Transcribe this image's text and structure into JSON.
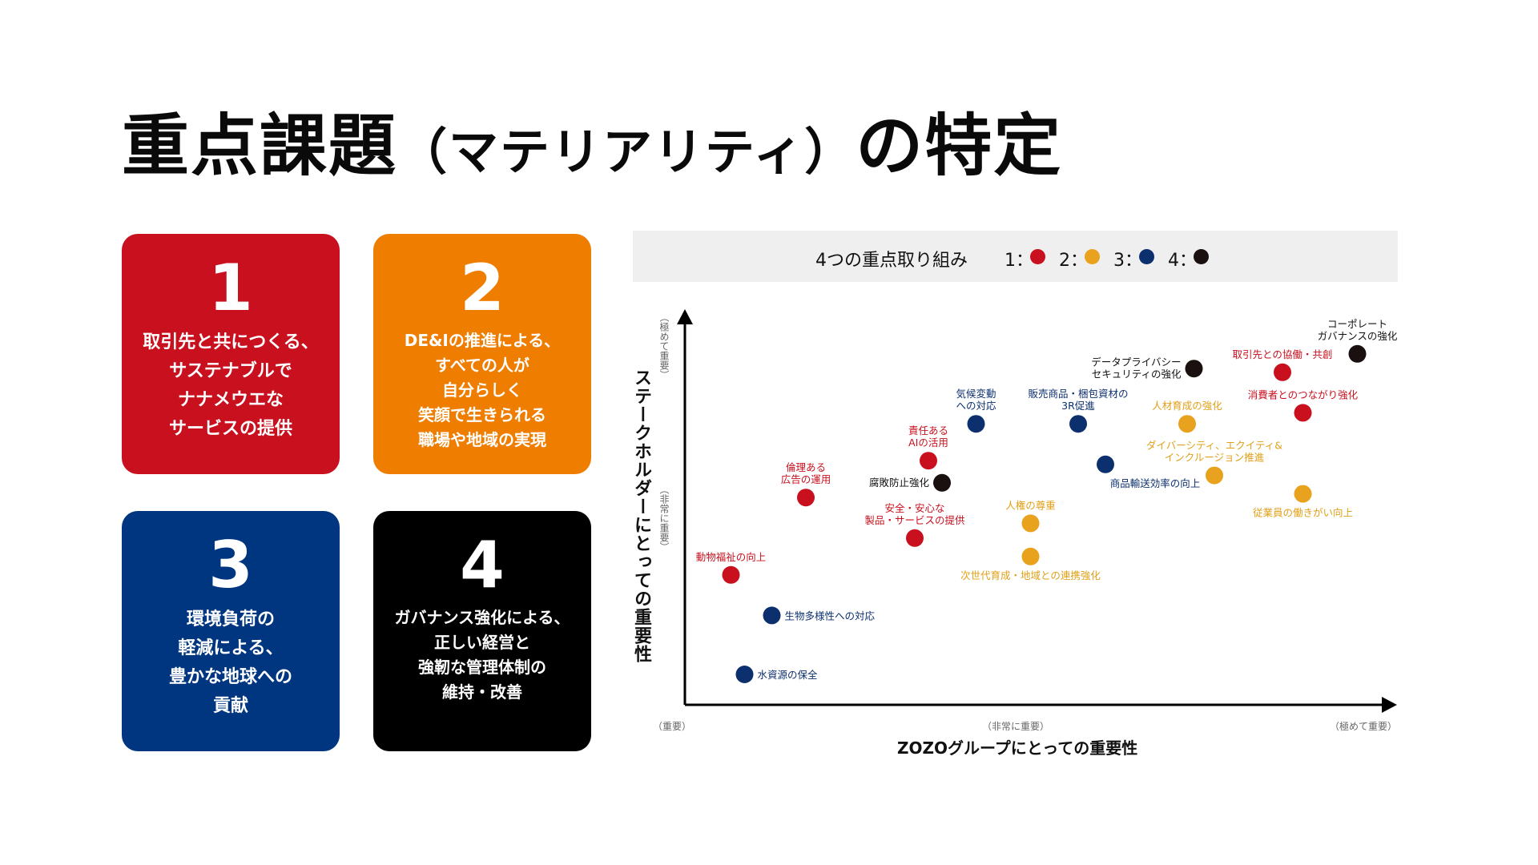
{
  "title": {
    "main": "重点課題",
    "paren": "（マテリアリティ）",
    "suffix": "の特定"
  },
  "cards": [
    {
      "number": "1",
      "text": "取引先と共につくる、\nサステナブルで\nナナメウエな\nサービスの提供",
      "color": "#c8101e"
    },
    {
      "number": "2",
      "text": "DE&Iの推進による、\nすべての人が\n自分らしく\n笑顔で生きられる\n職場や地域の実現",
      "color": "#ef7d00"
    },
    {
      "number": "3",
      "text": "環境負荷の\n軽減による、\n豊かな地球への\n貢献",
      "color": "#003580"
    },
    {
      "number": "4",
      "text": "ガバナンス強化による、\n正しい経営と\n強靭な管理体制の\n維持・改善",
      "color": "#000000"
    }
  ],
  "legend": {
    "title": "4つの重点取り組み",
    "items": [
      {
        "label": "1：",
        "color": "#c8101e"
      },
      {
        "label": "2：",
        "color": "#e8a21e"
      },
      {
        "label": "3：",
        "color": "#0c2f6e"
      },
      {
        "label": "4：",
        "color": "#1a1010"
      }
    ]
  },
  "chart_data": {
    "type": "scatter",
    "xlabel": "ZOZOグループにとっての重要性",
    "ylabel": "ステークホルダーにとっての重要性",
    "x_ticks": [
      "（重要）",
      "（非常に重要）",
      "（極めて重要）"
    ],
    "y_ticks": [
      "（極めて重要）",
      "（非常に重要）"
    ],
    "xlim": [
      0,
      100
    ],
    "ylim": [
      0,
      100
    ],
    "grid": false,
    "legend_position": "top",
    "points": [
      {
        "label": "コーポレート\nガバナンスの強化",
        "group": 4,
        "x": 97,
        "y": 92
      },
      {
        "label": "取引先との協働・共創",
        "group": 1,
        "x": 86,
        "y": 87
      },
      {
        "label": "データプライバシー\nセキュリティの強化",
        "group": 4,
        "x": 73,
        "y": 88
      },
      {
        "label": "消費者とのつながり強化",
        "group": 1,
        "x": 89,
        "y": 76
      },
      {
        "label": "人材育成の強化",
        "group": 2,
        "x": 72,
        "y": 73
      },
      {
        "label": "販売商品・梱包資材の\n3R促進",
        "group": 3,
        "x": 56,
        "y": 73
      },
      {
        "label": "気候変動\nへの対応",
        "group": 3,
        "x": 41,
        "y": 73
      },
      {
        "label": "責任ある\nAIの活用",
        "group": 1,
        "x": 34,
        "y": 63
      },
      {
        "label": "商品輸送効率の向上",
        "group": 3,
        "x": 60,
        "y": 62
      },
      {
        "label": "ダイバーシティ、エクイティ&\nインクルージョン推進",
        "group": 2,
        "x": 76,
        "y": 59
      },
      {
        "label": "腐敗防止強化",
        "group": 4,
        "x": 36,
        "y": 57
      },
      {
        "label": "従業員の働きがい向上",
        "group": 2,
        "x": 89,
        "y": 54
      },
      {
        "label": "倫理ある\n広告の運用",
        "group": 1,
        "x": 16,
        "y": 53
      },
      {
        "label": "人権の尊重",
        "group": 2,
        "x": 49,
        "y": 46
      },
      {
        "label": "安全・安心な\n製品・サービスの提供",
        "group": 1,
        "x": 32,
        "y": 42
      },
      {
        "label": "次世代育成・地域との連携強化",
        "group": 2,
        "x": 49,
        "y": 37
      },
      {
        "label": "動物福祉の向上",
        "group": 1,
        "x": 5,
        "y": 32
      },
      {
        "label": "生物多様性への対応",
        "group": 3,
        "x": 11,
        "y": 21
      },
      {
        "label": "水資源の保全",
        "group": 3,
        "x": 7,
        "y": 5
      }
    ]
  }
}
